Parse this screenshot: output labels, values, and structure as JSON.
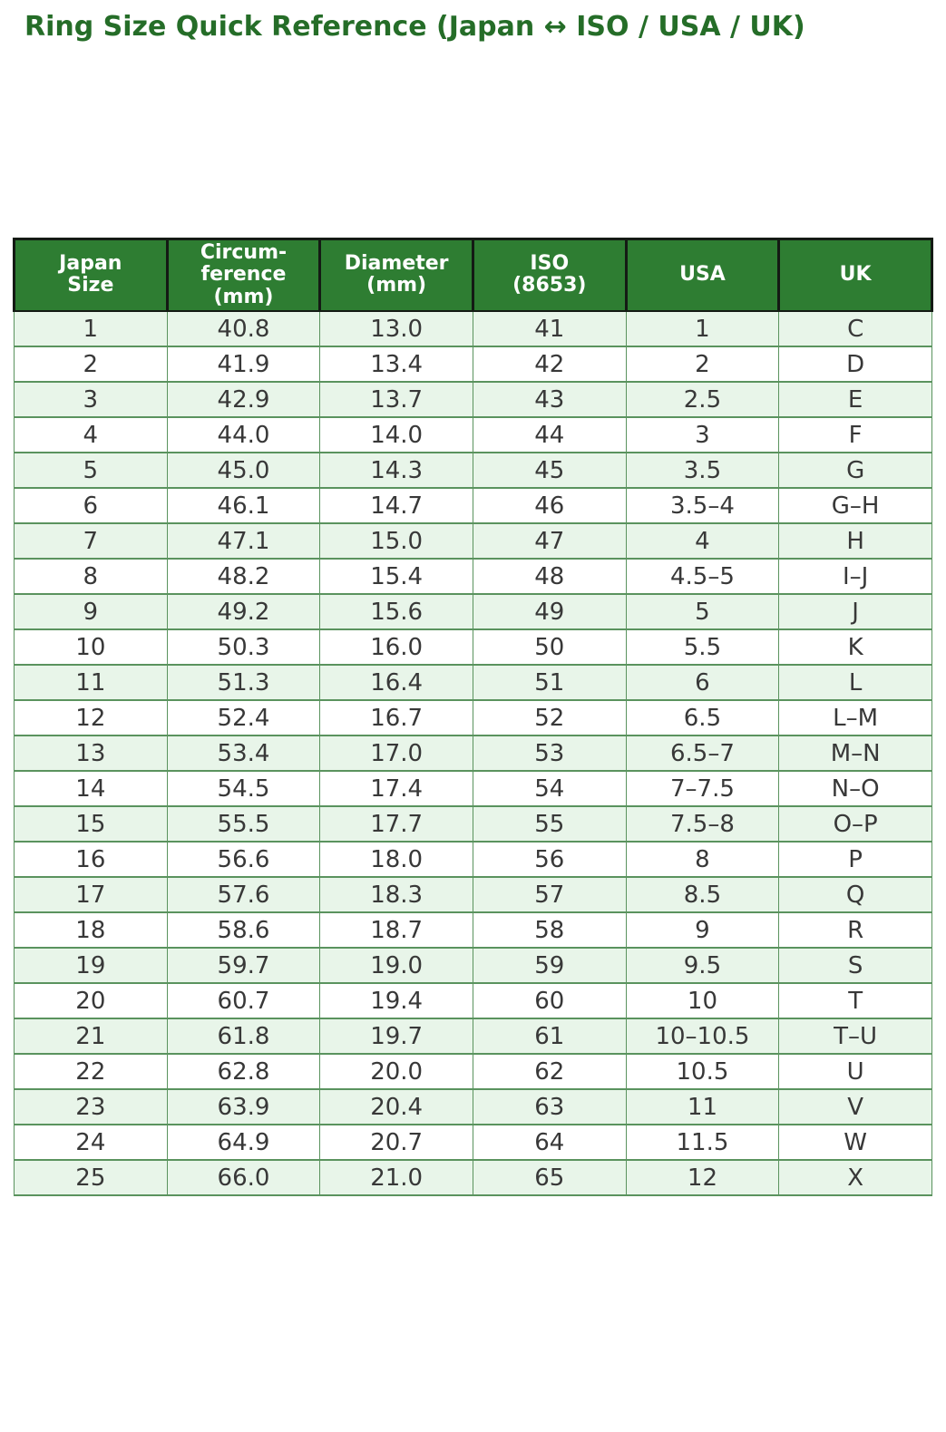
{
  "title": "Ring Size Quick Reference (Japan ↔ ISO / USA / UK)",
  "colors": {
    "title-color": "#256d28",
    "header-bg": "#2e7d32",
    "header-text": "#ffffff",
    "header-border": "#141a14",
    "row-alt-bg": "#e8f5e9",
    "row-bg": "#ffffff",
    "body-border": "#5a935e",
    "cell-text": "#383838"
  },
  "table": {
    "columns": [
      {
        "id": "japan-size",
        "lines": [
          "Japan",
          "Size"
        ]
      },
      {
        "id": "circumference-mm",
        "lines": [
          "Circum-",
          "ference",
          "(mm)"
        ]
      },
      {
        "id": "diameter-mm",
        "lines": [
          "Diameter",
          "(mm)"
        ]
      },
      {
        "id": "iso-8653",
        "lines": [
          "ISO",
          "(8653)"
        ]
      },
      {
        "id": "usa",
        "lines": [
          "USA"
        ]
      },
      {
        "id": "uk",
        "lines": [
          "UK"
        ]
      }
    ],
    "rows": [
      [
        "1",
        "40.8",
        "13.0",
        "41",
        "1",
        "C"
      ],
      [
        "2",
        "41.9",
        "13.4",
        "42",
        "2",
        "D"
      ],
      [
        "3",
        "42.9",
        "13.7",
        "43",
        "2.5",
        "E"
      ],
      [
        "4",
        "44.0",
        "14.0",
        "44",
        "3",
        "F"
      ],
      [
        "5",
        "45.0",
        "14.3",
        "45",
        "3.5",
        "G"
      ],
      [
        "6",
        "46.1",
        "14.7",
        "46",
        "3.5–4",
        "G–H"
      ],
      [
        "7",
        "47.1",
        "15.0",
        "47",
        "4",
        "H"
      ],
      [
        "8",
        "48.2",
        "15.4",
        "48",
        "4.5–5",
        "I–J"
      ],
      [
        "9",
        "49.2",
        "15.6",
        "49",
        "5",
        "J"
      ],
      [
        "10",
        "50.3",
        "16.0",
        "50",
        "5.5",
        "K"
      ],
      [
        "11",
        "51.3",
        "16.4",
        "51",
        "6",
        "L"
      ],
      [
        "12",
        "52.4",
        "16.7",
        "52",
        "6.5",
        "L–M"
      ],
      [
        "13",
        "53.4",
        "17.0",
        "53",
        "6.5–7",
        "M–N"
      ],
      [
        "14",
        "54.5",
        "17.4",
        "54",
        "7–7.5",
        "N–O"
      ],
      [
        "15",
        "55.5",
        "17.7",
        "55",
        "7.5–8",
        "O–P"
      ],
      [
        "16",
        "56.6",
        "18.0",
        "56",
        "8",
        "P"
      ],
      [
        "17",
        "57.6",
        "18.3",
        "57",
        "8.5",
        "Q"
      ],
      [
        "18",
        "58.6",
        "18.7",
        "58",
        "9",
        "R"
      ],
      [
        "19",
        "59.7",
        "19.0",
        "59",
        "9.5",
        "S"
      ],
      [
        "20",
        "60.7",
        "19.4",
        "60",
        "10",
        "T"
      ],
      [
        "21",
        "61.8",
        "19.7",
        "61",
        "10–10.5",
        "T–U"
      ],
      [
        "22",
        "62.8",
        "20.0",
        "62",
        "10.5",
        "U"
      ],
      [
        "23",
        "63.9",
        "20.4",
        "63",
        "11",
        "V"
      ],
      [
        "24",
        "64.9",
        "20.7",
        "64",
        "11.5",
        "W"
      ],
      [
        "25",
        "66.0",
        "21.0",
        "65",
        "12",
        "X"
      ]
    ]
  }
}
